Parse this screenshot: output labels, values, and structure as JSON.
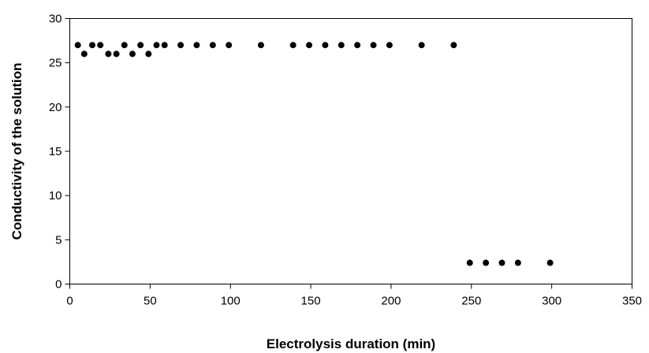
{
  "chart_data": {
    "type": "scatter",
    "title": "",
    "xlabel": "Electrolysis duration (min)",
    "ylabel": "Conductivity of the solution",
    "xlim": [
      0,
      350
    ],
    "ylim": [
      0,
      30
    ],
    "x_ticks": [
      0,
      50,
      100,
      150,
      200,
      250,
      300,
      350
    ],
    "y_ticks": [
      0,
      5,
      10,
      15,
      20,
      25,
      30
    ],
    "grid": false,
    "legend": "none",
    "marker_color": "#000000",
    "series": [
      {
        "points": [
          {
            "x": 5,
            "y": 27
          },
          {
            "x": 9,
            "y": 26
          },
          {
            "x": 14,
            "y": 27
          },
          {
            "x": 19,
            "y": 27
          },
          {
            "x": 24,
            "y": 26
          },
          {
            "x": 29,
            "y": 26
          },
          {
            "x": 34,
            "y": 27
          },
          {
            "x": 39,
            "y": 26
          },
          {
            "x": 44,
            "y": 27
          },
          {
            "x": 49,
            "y": 26
          },
          {
            "x": 54,
            "y": 27
          },
          {
            "x": 59,
            "y": 27
          },
          {
            "x": 69,
            "y": 27
          },
          {
            "x": 79,
            "y": 27
          },
          {
            "x": 89,
            "y": 27
          },
          {
            "x": 99,
            "y": 27
          },
          {
            "x": 119,
            "y": 27
          },
          {
            "x": 139,
            "y": 27
          },
          {
            "x": 149,
            "y": 27
          },
          {
            "x": 159,
            "y": 27
          },
          {
            "x": 169,
            "y": 27
          },
          {
            "x": 179,
            "y": 27
          },
          {
            "x": 189,
            "y": 27
          },
          {
            "x": 199,
            "y": 27
          },
          {
            "x": 219,
            "y": 27
          },
          {
            "x": 239,
            "y": 27
          },
          {
            "x": 249,
            "y": 2.4
          },
          {
            "x": 259,
            "y": 2.4
          },
          {
            "x": 269,
            "y": 2.4
          },
          {
            "x": 279,
            "y": 2.4
          },
          {
            "x": 299,
            "y": 2.4
          }
        ]
      }
    ]
  }
}
